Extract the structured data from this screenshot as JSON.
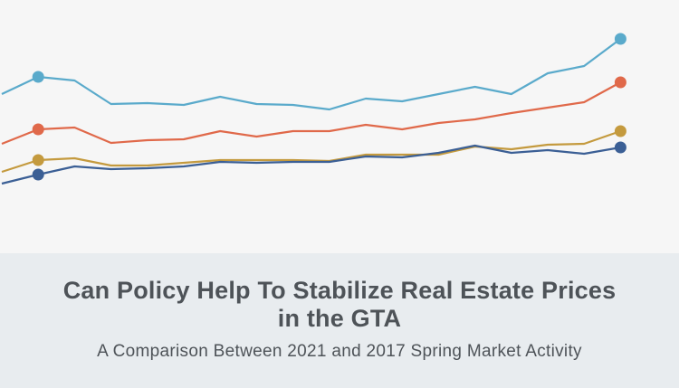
{
  "chart_data": {
    "type": "line",
    "title": "Can Policy Help To Stabilize Real Estate Prices in the GTA",
    "subtitle": "A Comparison Between 2021 and 2017 Spring Market Activity",
    "xlabel": "",
    "ylabel": "",
    "grid": false,
    "legend": "none",
    "ylim": [
      0,
      100
    ],
    "series": [
      {
        "name": "series-light-blue",
        "color": "#5aaacb",
        "values": [
          58.4,
          66.0,
          64.4,
          54.0,
          54.4,
          53.6,
          57.2,
          54.0,
          53.6,
          51.6,
          56.4,
          55.2,
          58.4,
          61.6,
          58.4,
          67.6,
          70.8,
          82.8
        ],
        "markers": [
          1,
          17
        ]
      },
      {
        "name": "series-orange",
        "color": "#e0694a",
        "values": [
          36.4,
          42.8,
          43.6,
          36.8,
          38.0,
          38.4,
          42.0,
          39.6,
          42.0,
          42.0,
          44.8,
          42.8,
          45.6,
          47.2,
          50.0,
          52.4,
          54.8,
          63.6
        ],
        "markers": [
          1,
          17
        ]
      },
      {
        "name": "series-gold",
        "color": "#c49a3e",
        "values": [
          24.0,
          29.2,
          30.0,
          26.8,
          26.8,
          28.0,
          29.2,
          29.2,
          29.2,
          28.8,
          31.6,
          31.6,
          31.6,
          35.2,
          34.0,
          36.0,
          36.4,
          42.0
        ],
        "markers": [
          1,
          17
        ]
      },
      {
        "name": "series-navy",
        "color": "#3b5f95",
        "values": [
          18.8,
          22.8,
          26.4,
          25.2,
          25.6,
          26.4,
          28.4,
          28.0,
          28.4,
          28.4,
          30.8,
          30.4,
          32.4,
          35.6,
          32.4,
          33.6,
          32.0,
          34.8
        ],
        "markers": [
          1,
          17
        ]
      }
    ]
  }
}
